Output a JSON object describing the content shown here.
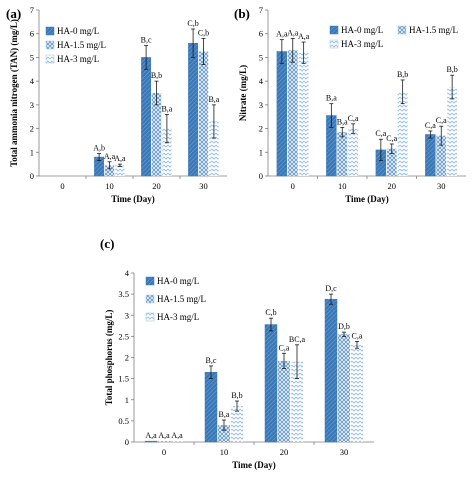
{
  "colors": {
    "series0": "#3a78b7",
    "series1": "#6f9fcd",
    "series2": "#9fc3e0",
    "axis": "#7f7f7f",
    "error_bar": "#1a1a1a"
  },
  "chart_data": [
    {
      "panel": "(a)",
      "type": "bar",
      "xlabel": "Time (Day)",
      "ylabel": "Total ammonia nitrogen (TAN) (mg/L)",
      "ylim": [
        0,
        7
      ],
      "yticks": [
        "0",
        "1",
        "2",
        "3",
        "4",
        "5",
        "6",
        "7"
      ],
      "categories": [
        "0",
        "10",
        "20",
        "30"
      ],
      "legend_position": "top-left",
      "series": [
        {
          "name": "HA-0 mg/L",
          "values": [
            0,
            0.8,
            5.0,
            5.6
          ],
          "errors": [
            0,
            0.15,
            0.5,
            0.6
          ],
          "labels": [
            "",
            "A,b",
            "B,c",
            "C,b"
          ]
        },
        {
          "name": "HA-1.5 mg/L",
          "values": [
            0,
            0.45,
            3.5,
            5.25
          ],
          "errors": [
            0,
            0.15,
            0.5,
            0.55
          ],
          "labels": [
            "",
            "A,a",
            "B,b",
            "C,b"
          ]
        },
        {
          "name": "HA-3 mg/L",
          "values": [
            0,
            0.45,
            2.0,
            2.3
          ],
          "errors": [
            0,
            0.05,
            0.6,
            0.7
          ],
          "labels": [
            "",
            "A,a",
            "B,a",
            "B,a"
          ]
        }
      ]
    },
    {
      "panel": "(b)",
      "type": "bar",
      "xlabel": "Time (Day)",
      "ylabel": "Nitrate (mg/L)",
      "ylim": [
        0,
        7
      ],
      "yticks": [
        "0",
        "1",
        "2",
        "3",
        "4",
        "5",
        "6",
        "7"
      ],
      "categories": [
        "0",
        "10",
        "20",
        "30"
      ],
      "legend_position": "top-right",
      "series": [
        {
          "name": "HA-0 mg/L",
          "values": [
            5.25,
            2.55,
            1.1,
            1.75
          ],
          "errors": [
            0.5,
            0.5,
            0.45,
            0.15
          ],
          "labels": [
            "A,a",
            "B,a",
            "C,a",
            "C,a"
          ]
        },
        {
          "name": "HA-1.5 mg/L",
          "values": [
            5.3,
            1.85,
            1.15,
            1.7
          ],
          "errors": [
            0.5,
            0.2,
            0.2,
            0.4
          ],
          "labels": [
            "A,a",
            "B,a",
            "C,a",
            "C,a"
          ]
        },
        {
          "name": "HA-3 mg/L",
          "values": [
            5.2,
            2.0,
            3.55,
            3.75
          ],
          "errors": [
            0.45,
            0.2,
            0.5,
            0.5
          ],
          "labels": [
            "A,a",
            "C,a",
            "B,b",
            "B,b"
          ]
        }
      ]
    },
    {
      "panel": "(c)",
      "type": "bar",
      "xlabel": "Time (Day)",
      "ylabel": "Total phosphorus (mg/L)",
      "ylim": [
        0,
        4
      ],
      "yticks": [
        "0",
        "0.5",
        "1",
        "1.5",
        "2",
        "2.5",
        "3",
        "3.5",
        "4"
      ],
      "categories": [
        "0",
        "10",
        "20",
        "30"
      ],
      "legend_position": "top-left",
      "series": [
        {
          "name": "HA-0 mg/L",
          "values": [
            0.02,
            1.65,
            2.78,
            3.38
          ],
          "errors": [
            0,
            0.15,
            0.15,
            0.12
          ],
          "labels": [
            "A,a",
            "B,c",
            "C,b",
            "D,c"
          ]
        },
        {
          "name": "HA-1.5 mg/L",
          "values": [
            0.02,
            0.4,
            1.92,
            2.55
          ],
          "errors": [
            0,
            0.12,
            0.18,
            0.05
          ],
          "labels": [
            "A,a",
            "B,a",
            "C,a",
            "D,b"
          ]
        },
        {
          "name": "HA-3 mg/L",
          "values": [
            0.02,
            0.85,
            1.9,
            2.3
          ],
          "errors": [
            0,
            0.12,
            0.4,
            0.08
          ],
          "labels": [
            "A,a",
            "B,b",
            "BC,a",
            "C,a"
          ]
        }
      ]
    }
  ]
}
